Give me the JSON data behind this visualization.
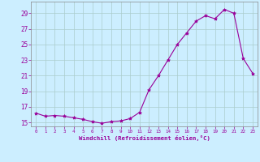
{
  "x": [
    0,
    1,
    2,
    3,
    4,
    5,
    6,
    7,
    8,
    9,
    10,
    11,
    12,
    13,
    14,
    15,
    16,
    17,
    18,
    19,
    20,
    21,
    22,
    23
  ],
  "y": [
    16.2,
    15.8,
    15.9,
    15.8,
    15.6,
    15.4,
    15.1,
    14.9,
    15.1,
    15.2,
    15.5,
    16.3,
    19.2,
    21.0,
    23.0,
    25.0,
    26.5,
    28.0,
    28.7,
    28.3,
    29.5,
    29.0,
    23.2,
    21.3
  ],
  "line_color": "#990099",
  "marker": "*",
  "marker_size": 3,
  "bg_color": "#cceeff",
  "grid_color": "#aacccc",
  "xlabel": "Windchill (Refroidissement éolien,°C)",
  "xlabel_color": "#990099",
  "tick_color": "#990099",
  "ylim": [
    14.5,
    30.5
  ],
  "yticks": [
    15,
    17,
    19,
    21,
    23,
    25,
    27,
    29
  ],
  "xtick_labels": [
    "0",
    "1",
    "2",
    "3",
    "4",
    "5",
    "6",
    "7",
    "8",
    "9",
    "10",
    "11",
    "12",
    "13",
    "14",
    "15",
    "16",
    "17",
    "18",
    "19",
    "20",
    "21",
    "22",
    "23"
  ]
}
